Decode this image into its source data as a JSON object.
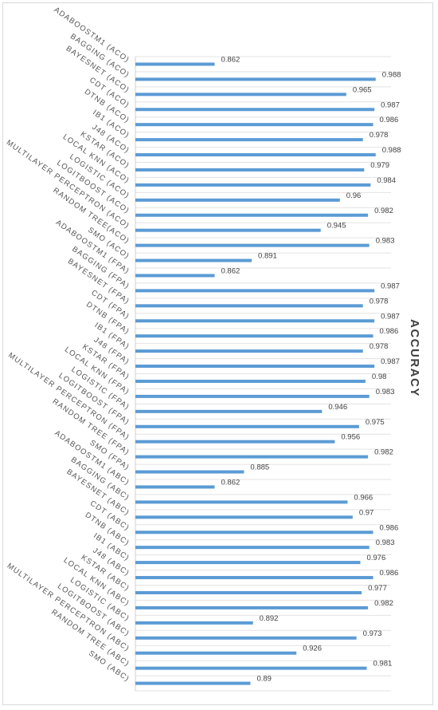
{
  "chart_data": {
    "type": "bar",
    "orientation": "horizontal",
    "axis_title": "ACCURACY",
    "xlim": [
      0.8,
      1.0
    ],
    "grid": true,
    "bar_color": "#5b9bd5",
    "categories": [
      "ADABOOSTM1 (ACO)",
      "BAGGING (ACO)",
      "BAYESNET (ACO)",
      "CDT (ACO)",
      "DTNB (ACO)",
      "IB1 (ACO)",
      "J48 (ACO)",
      "KSTAR (ACO)",
      "LOCAL KNN (ACO)",
      "LOGISTIC (ACO)",
      "LOGITBOOST (ACO)",
      "MULTILAYER PERCEPTRON (ACO)",
      "RANDOM TREE(ACO)",
      "SMO (ACO)",
      "ADABOOSTM1 (FPA)",
      "BAGGING (FPA)",
      "BAYESNET (FPA)",
      "CDT (FPA)",
      "DTNB (FPA)",
      "IB1 (FPA)",
      "J48 (FPA)",
      "KSTAR (FPA)",
      "LOCAL KNN (FPA)",
      "LOGISTIC (FPA)",
      "LOGITBOOST (FPA)",
      "MULTILAYER PERCEPTRON (FPA)",
      "RANDOM TREE (FPA)",
      "SMO (FPA)",
      "ADABOOSTM1 (ABC)",
      "BAGGING (ABC)",
      "BAYESNET (ABC)",
      "CDT (ABC)",
      "DTNB (ABC)",
      "IB1 (ABC)",
      "J48 (ABC)",
      "KSTAR (ABC)",
      "LOCAL KNN (ABC)",
      "LOGISTIC (ABC)",
      "LOGITBOOST (ABC)",
      "MULTILAYER PERCEPTRON (ABC)",
      "RANDOM TREE (ABC)",
      "SMO (ABC)"
    ],
    "values": [
      0.862,
      0.988,
      0.965,
      0.987,
      0.986,
      0.978,
      0.988,
      0.979,
      0.984,
      0.96,
      0.982,
      0.945,
      0.983,
      0.891,
      0.862,
      0.987,
      0.978,
      0.987,
      0.986,
      0.978,
      0.987,
      0.98,
      0.983,
      0.946,
      0.975,
      0.956,
      0.982,
      0.885,
      0.862,
      0.966,
      0.97,
      0.986,
      0.983,
      0.976,
      0.986,
      0.977,
      0.982,
      0.892,
      0.973,
      0.926,
      0.981,
      0.89
    ]
  }
}
